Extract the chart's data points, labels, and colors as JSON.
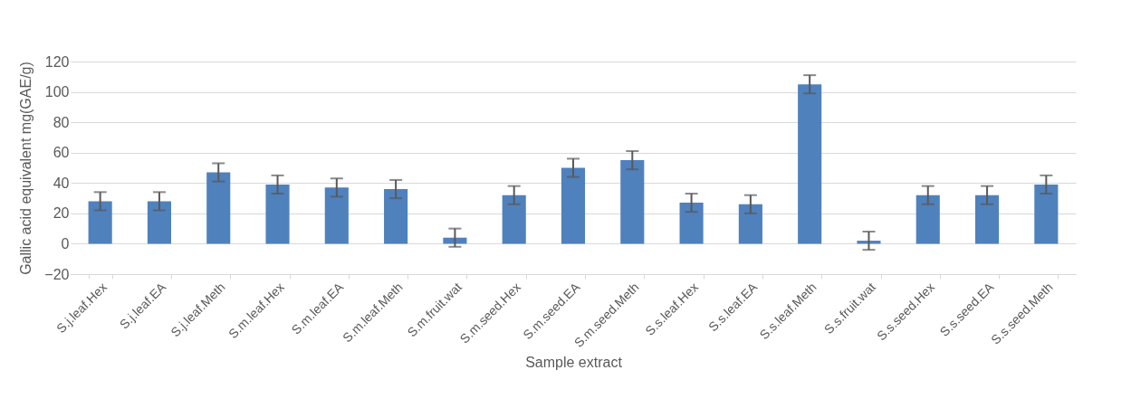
{
  "chart_data": {
    "type": "bar",
    "xlabel": "Sample extract",
    "ylabel": "Gallic acid equivalent mg(GAE/g)",
    "categories": [
      "S.j.leaf.Hex",
      "S.j.leaf.EA",
      "S.j.leaf.Meth",
      "S.m.leaf.Hex",
      "S.m.leaf.EA",
      "S.m.leaf.Meth",
      "S.m.fruit.wat",
      "S.m.seed.Hex",
      "S.m.seed.EA",
      "S.m.seed.Meth",
      "S.s.leaf.Hex",
      "S.s.leaf.EA",
      "S.s.leaf.Meth",
      "S.s.fruit.wat",
      "S.s.seed.Hex",
      "S.s.seed.EA",
      "S.s.seed.Meth"
    ],
    "values": [
      28,
      28,
      47,
      39,
      37,
      36,
      4,
      32,
      50,
      55,
      27,
      26,
      105,
      2,
      32,
      32,
      39
    ],
    "errors": [
      6,
      6,
      6,
      6,
      6,
      6,
      6,
      6,
      6,
      6,
      6,
      6,
      6,
      6,
      6,
      6,
      6
    ],
    "color": "#4f81bd",
    "ylim": [
      -20,
      120
    ],
    "yticks": [
      -20,
      0,
      20,
      40,
      60,
      80,
      100,
      120
    ],
    "grid": "y"
  }
}
